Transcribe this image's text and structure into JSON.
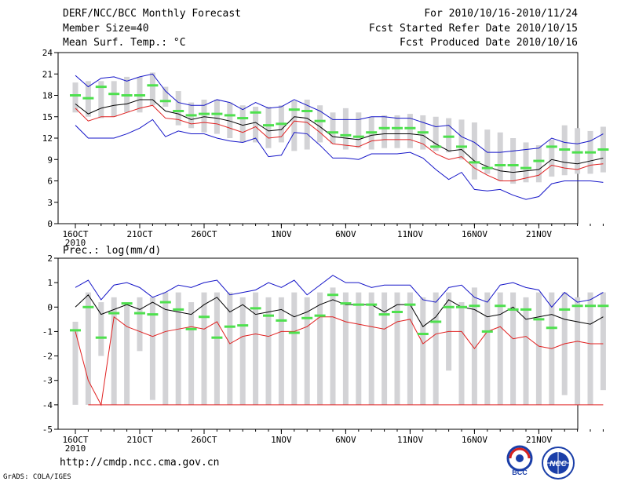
{
  "header": {
    "title": "DERF/NCC/BCC Monthly Forecast",
    "member_size": "Member Size=40",
    "variable": "Mean Surf. Temp.: °C",
    "period": "For 2010/10/16-2010/11/24",
    "started": "Fcst Started Refer Date 2010/10/15",
    "produced": "Fcst Produced Date 2010/10/16"
  },
  "footer": {
    "url": "http://cmdp.ncc.cma.gov.cn",
    "grads": "GrADS: COLA/IGES",
    "logo_bcc": "BCC",
    "logo_ncc": "NCC"
  },
  "colors": {
    "box": "#d3d3d6",
    "median": "#4ee04e",
    "mean": "#000000",
    "lower": "#e02020",
    "upper": "#1414c8"
  },
  "chart_data": [
    {
      "type": "box",
      "title": "Mean Surf. Temp.: °C",
      "ylim": [
        0,
        24
      ],
      "yticks": [
        0,
        3,
        6,
        9,
        12,
        15,
        18,
        21,
        24
      ],
      "xtick_labels": [
        {
          "day": 0,
          "label": "16OCT",
          "sub": "2010"
        },
        {
          "day": 5,
          "label": "21OCT"
        },
        {
          "day": 10,
          "label": "26OCT"
        },
        {
          "day": 16,
          "label": "1NOV"
        },
        {
          "day": 21,
          "label": "6NOV"
        },
        {
          "day": 26,
          "label": "11NOV"
        },
        {
          "day": 31,
          "label": "16NOV"
        },
        {
          "day": 36,
          "label": "21NOV"
        }
      ],
      "box_low": [
        15.6,
        15.0,
        14.8,
        15.0,
        15.6,
        15.6,
        16.6,
        16.4,
        13.8,
        13.4,
        12.8,
        12.6,
        12.0,
        11.4,
        11.4,
        10.6,
        11.4,
        10.2,
        10.4,
        11.4,
        11.2,
        10.4,
        10.6,
        10.4,
        10.6,
        10.6,
        10.6,
        10.4,
        10.2,
        10.0,
        9.0,
        6.2,
        7.0,
        6.0,
        5.6,
        5.8,
        5.8,
        6.6,
        6.8,
        7.0,
        7.0,
        7.2
      ],
      "box_high": [
        19.8,
        20.0,
        20.0,
        20.0,
        20.6,
        20.6,
        21.2,
        19.2,
        18.6,
        17.0,
        17.4,
        17.4,
        17.0,
        16.6,
        16.4,
        16.4,
        16.6,
        17.2,
        17.4,
        16.6,
        15.6,
        16.2,
        15.6,
        15.0,
        15.2,
        15.2,
        15.4,
        15.2,
        15.0,
        14.8,
        14.6,
        14.2,
        13.2,
        12.8,
        12.0,
        11.4,
        11.0,
        11.8,
        13.8,
        13.4,
        13.0,
        13.6
      ],
      "median": [
        18.0,
        17.6,
        19.2,
        18.2,
        18.0,
        18.0,
        19.4,
        17.2,
        15.8,
        15.2,
        15.4,
        15.4,
        15.2,
        14.8,
        15.6,
        13.8,
        14.0,
        16.0,
        15.8,
        14.4,
        12.8,
        12.4,
        12.2,
        12.8,
        13.4,
        13.4,
        13.4,
        12.8,
        10.8,
        12.2,
        10.8,
        8.6,
        7.8,
        8.2,
        8.2,
        7.8,
        8.8,
        10.8,
        10.4,
        10.0,
        10.0,
        10.4
      ],
      "mean": [
        16.8,
        15.4,
        16.2,
        16.6,
        16.8,
        17.4,
        17.4,
        15.8,
        15.4,
        14.6,
        15.0,
        14.8,
        14.4,
        13.8,
        14.2,
        13.0,
        13.2,
        15.0,
        14.8,
        13.6,
        12.2,
        12.0,
        11.8,
        12.4,
        12.6,
        12.6,
        12.6,
        12.4,
        11.2,
        10.2,
        10.4,
        8.8,
        8.0,
        7.4,
        7.2,
        7.4,
        7.6,
        9.0,
        8.6,
        8.4,
        8.8,
        9.2
      ],
      "lower": [
        16.2,
        14.4,
        15.0,
        15.0,
        15.6,
        16.2,
        16.6,
        14.8,
        14.6,
        14.0,
        14.2,
        14.0,
        13.4,
        12.8,
        13.6,
        12.0,
        12.2,
        14.4,
        14.2,
        12.8,
        11.2,
        11.0,
        10.8,
        11.6,
        11.8,
        11.8,
        11.8,
        11.2,
        9.8,
        9.0,
        9.4,
        7.8,
        6.8,
        6.0,
        6.0,
        6.4,
        6.8,
        8.2,
        7.8,
        7.6,
        8.2,
        8.4
      ],
      "upper": [
        20.8,
        19.2,
        20.4,
        20.6,
        20.0,
        20.6,
        21.0,
        18.6,
        17.0,
        16.6,
        16.6,
        17.4,
        17.0,
        16.0,
        17.0,
        16.2,
        16.4,
        17.4,
        16.6,
        15.8,
        14.6,
        14.6,
        14.6,
        15.0,
        15.0,
        14.8,
        14.8,
        14.2,
        13.6,
        13.8,
        12.2,
        11.4,
        10.0,
        10.0,
        10.2,
        10.4,
        10.6,
        12.0,
        11.4,
        11.2,
        11.6,
        12.6
      ],
      "lowest": [
        13.8,
        12.0,
        12.0,
        12.0,
        12.6,
        13.4,
        14.6,
        12.2,
        13.0,
        12.6,
        12.6,
        12.0,
        11.6,
        11.4,
        12.0,
        9.4,
        9.6,
        12.8,
        12.6,
        11.0,
        9.2,
        9.2,
        9.0,
        9.8,
        9.8,
        9.8,
        10.0,
        9.2,
        7.6,
        6.2,
        7.2,
        4.8,
        4.6,
        4.8,
        4.0,
        3.4,
        3.8,
        5.6,
        6.0,
        6.0,
        6.0,
        5.8
      ]
    },
    {
      "type": "box",
      "title": "Prec.: log(mm/d)",
      "ylim": [
        -5,
        2
      ],
      "yticks": [
        -5,
        -4,
        -3,
        -2,
        -1,
        0,
        1,
        2
      ],
      "xtick_labels": [
        {
          "day": 0,
          "label": "16OCT",
          "sub": "2010"
        },
        {
          "day": 5,
          "label": "21OCT"
        },
        {
          "day": 10,
          "label": "26OCT"
        },
        {
          "day": 16,
          "label": "1NOV"
        },
        {
          "day": 21,
          "label": "6NOV"
        },
        {
          "day": 26,
          "label": "11NOV"
        },
        {
          "day": 31,
          "label": "16NOV"
        },
        {
          "day": 36,
          "label": "21NOV"
        }
      ],
      "box_low": [
        -4.0,
        -4.0,
        -2.0,
        -4.0,
        -4.0,
        -1.8,
        -3.8,
        -4.0,
        -4.0,
        -4.0,
        -4.0,
        -4.0,
        -4.0,
        -4.0,
        -4.0,
        -4.0,
        -4.0,
        -4.0,
        -4.0,
        -4.0,
        -4.0,
        -4.0,
        -4.0,
        -4.0,
        -4.0,
        -4.0,
        -4.0,
        -4.0,
        -4.0,
        -2.6,
        -4.0,
        -4.0,
        -4.0,
        -4.0,
        -4.0,
        -4.0,
        -4.0,
        -4.0,
        -3.6,
        -4.0,
        -4.0,
        -3.4
      ],
      "box_high": [
        -0.6,
        0.6,
        0.2,
        0.4,
        0.2,
        0.4,
        0.4,
        0.6,
        0.6,
        0.2,
        0.6,
        0.6,
        0.6,
        0.4,
        0.6,
        0.4,
        0.4,
        0.6,
        0.4,
        0.6,
        0.8,
        0.6,
        0.6,
        0.6,
        0.6,
        0.6,
        0.6,
        0.4,
        0.6,
        0.6,
        0.2,
        0.8,
        0.6,
        0.6,
        0.6,
        0.4,
        0.6,
        0.6,
        0.6,
        0.4,
        0.6,
        0.6
      ],
      "median": [
        -0.95,
        0.0,
        -1.25,
        -0.25,
        0.15,
        -0.25,
        -0.3,
        0.2,
        -0.1,
        -0.9,
        -0.4,
        -1.25,
        -0.8,
        -0.75,
        -0.05,
        -0.35,
        -0.55,
        -1.05,
        -0.45,
        -0.35,
        0.5,
        0.15,
        0.1,
        0.1,
        -0.3,
        -0.2,
        0.1,
        -1.1,
        -0.6,
        -0.0,
        0.0,
        0.05,
        -1.0,
        0.05,
        -0.1,
        -0.1,
        -0.5,
        -0.85,
        -0.1,
        0.05,
        0.05,
        0.05
      ],
      "mean": [
        0.0,
        0.5,
        -0.3,
        -0.1,
        0.1,
        -0.1,
        0.2,
        -0.1,
        -0.2,
        -0.3,
        0.1,
        0.4,
        -0.2,
        0.1,
        -0.3,
        -0.2,
        -0.1,
        -0.4,
        -0.2,
        0.1,
        0.3,
        0.1,
        0.1,
        0.1,
        -0.2,
        0.1,
        0.1,
        -0.8,
        -0.4,
        0.3,
        0.0,
        -0.1,
        -0.4,
        -0.3,
        0.0,
        -0.5,
        -0.4,
        -0.3,
        -0.5,
        -0.6,
        -0.7,
        -0.4
      ],
      "lower": [
        -1.0,
        -3.0,
        -4.0,
        -0.4,
        -0.8,
        -1.0,
        -1.2,
        -1.0,
        -0.9,
        -0.8,
        -0.9,
        -0.6,
        -1.5,
        -1.2,
        -1.1,
        -1.2,
        -1.0,
        -1.0,
        -0.8,
        -0.4,
        -0.4,
        -0.6,
        -0.7,
        -0.8,
        -0.9,
        -0.6,
        -0.5,
        -1.5,
        -1.1,
        -1.0,
        -1.0,
        -1.7,
        -1.0,
        -0.8,
        -1.3,
        -1.2,
        -1.6,
        -1.7,
        -1.5,
        -1.4,
        -1.5,
        -1.5
      ],
      "upper": [
        0.8,
        1.1,
        0.3,
        0.9,
        1.0,
        0.8,
        0.4,
        0.6,
        0.9,
        0.8,
        1.0,
        1.1,
        0.5,
        0.6,
        0.7,
        1.0,
        0.8,
        1.1,
        0.5,
        0.9,
        1.3,
        1.0,
        1.0,
        0.8,
        0.9,
        0.9,
        0.9,
        0.3,
        0.2,
        0.8,
        0.9,
        0.4,
        0.2,
        0.9,
        1.0,
        0.8,
        0.7,
        0.0,
        0.6,
        0.2,
        0.3,
        0.6
      ],
      "floor": -4.0
    }
  ]
}
